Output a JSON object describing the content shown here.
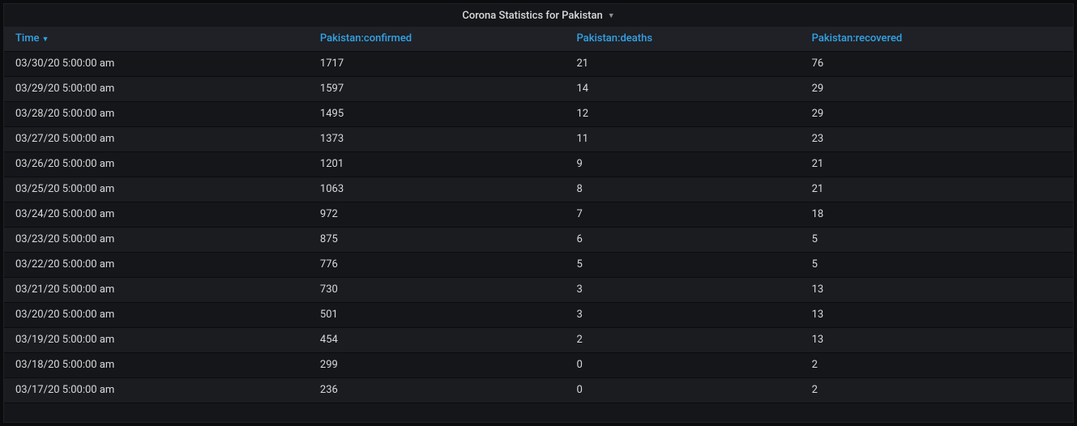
{
  "panel": {
    "title": "Corona Statistics for Pakistan"
  },
  "colors": {
    "background": "#0b0c0e",
    "panel_bg": "#141619",
    "header_bg": "#1f2126",
    "row_odd": "#141619",
    "row_even": "#1a1c20",
    "link": "#33a2e5",
    "text": "#d8d9da",
    "border": "#0b0c0e"
  },
  "table": {
    "type": "table",
    "columns": [
      "Time",
      "Pakistan:confirmed",
      "Pakistan:deaths",
      "Pakistan:recovered"
    ],
    "sort_column": 0,
    "sort_dir": "desc",
    "rows": [
      [
        "03/30/20 5:00:00 am",
        "1717",
        "21",
        "76"
      ],
      [
        "03/29/20 5:00:00 am",
        "1597",
        "14",
        "29"
      ],
      [
        "03/28/20 5:00:00 am",
        "1495",
        "12",
        "29"
      ],
      [
        "03/27/20 5:00:00 am",
        "1373",
        "11",
        "23"
      ],
      [
        "03/26/20 5:00:00 am",
        "1201",
        "9",
        "21"
      ],
      [
        "03/25/20 5:00:00 am",
        "1063",
        "8",
        "21"
      ],
      [
        "03/24/20 5:00:00 am",
        "972",
        "7",
        "18"
      ],
      [
        "03/23/20 5:00:00 am",
        "875",
        "6",
        "5"
      ],
      [
        "03/22/20 5:00:00 am",
        "776",
        "5",
        "5"
      ],
      [
        "03/21/20 5:00:00 am",
        "730",
        "3",
        "13"
      ],
      [
        "03/20/20 5:00:00 am",
        "501",
        "3",
        "13"
      ],
      [
        "03/19/20 5:00:00 am",
        "454",
        "2",
        "13"
      ],
      [
        "03/18/20 5:00:00 am",
        "299",
        "0",
        "2"
      ],
      [
        "03/17/20 5:00:00 am",
        "236",
        "0",
        "2"
      ]
    ]
  }
}
